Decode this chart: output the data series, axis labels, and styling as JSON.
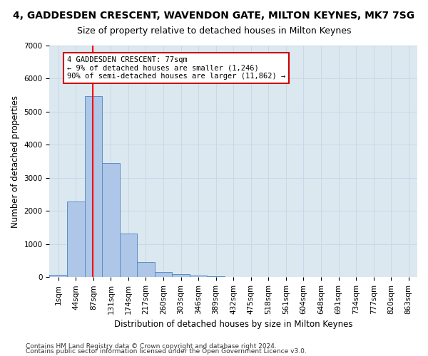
{
  "title": "4, GADDESDEN CRESCENT, WAVENDON GATE, MILTON KEYNES, MK7 7SG",
  "subtitle": "Size of property relative to detached houses in Milton Keynes",
  "xlabel": "Distribution of detached houses by size in Milton Keynes",
  "ylabel": "Number of detached properties",
  "footer_line1": "Contains HM Land Registry data © Crown copyright and database right 2024.",
  "footer_line2": "Contains public sector information licensed under the Open Government Licence v3.0.",
  "bin_labels": [
    "1sqm",
    "44sqm",
    "87sqm",
    "131sqm",
    "174sqm",
    "217sqm",
    "260sqm",
    "303sqm",
    "346sqm",
    "389sqm",
    "432sqm",
    "475sqm",
    "518sqm",
    "561sqm",
    "604sqm",
    "648sqm",
    "691sqm",
    "734sqm",
    "777sqm",
    "820sqm",
    "863sqm"
  ],
  "bar_values": [
    75,
    2280,
    5480,
    3440,
    1310,
    460,
    155,
    85,
    55,
    30,
    0,
    0,
    0,
    0,
    0,
    0,
    0,
    0,
    0,
    0,
    0
  ],
  "bar_color": "#aec6e8",
  "bar_edge_color": "#5a8fc2",
  "red_line_x": 1.95,
  "annotation_text": "4 GADDESDEN CRESCENT: 77sqm\n← 9% of detached houses are smaller (1,246)\n90% of semi-detached houses are larger (11,862) →",
  "annotation_box_color": "#ffffff",
  "annotation_box_edge": "#cc0000",
  "ylim": [
    0,
    7000
  ],
  "yticks": [
    0,
    1000,
    2000,
    3000,
    4000,
    5000,
    6000,
    7000
  ],
  "grid_color": "#c8d8e8",
  "background_color": "#dce8f0",
  "title_fontsize": 10,
  "subtitle_fontsize": 9,
  "axis_label_fontsize": 8.5,
  "tick_fontsize": 7.5,
  "annotation_fontsize": 7.5,
  "footer_fontsize": 6.5
}
